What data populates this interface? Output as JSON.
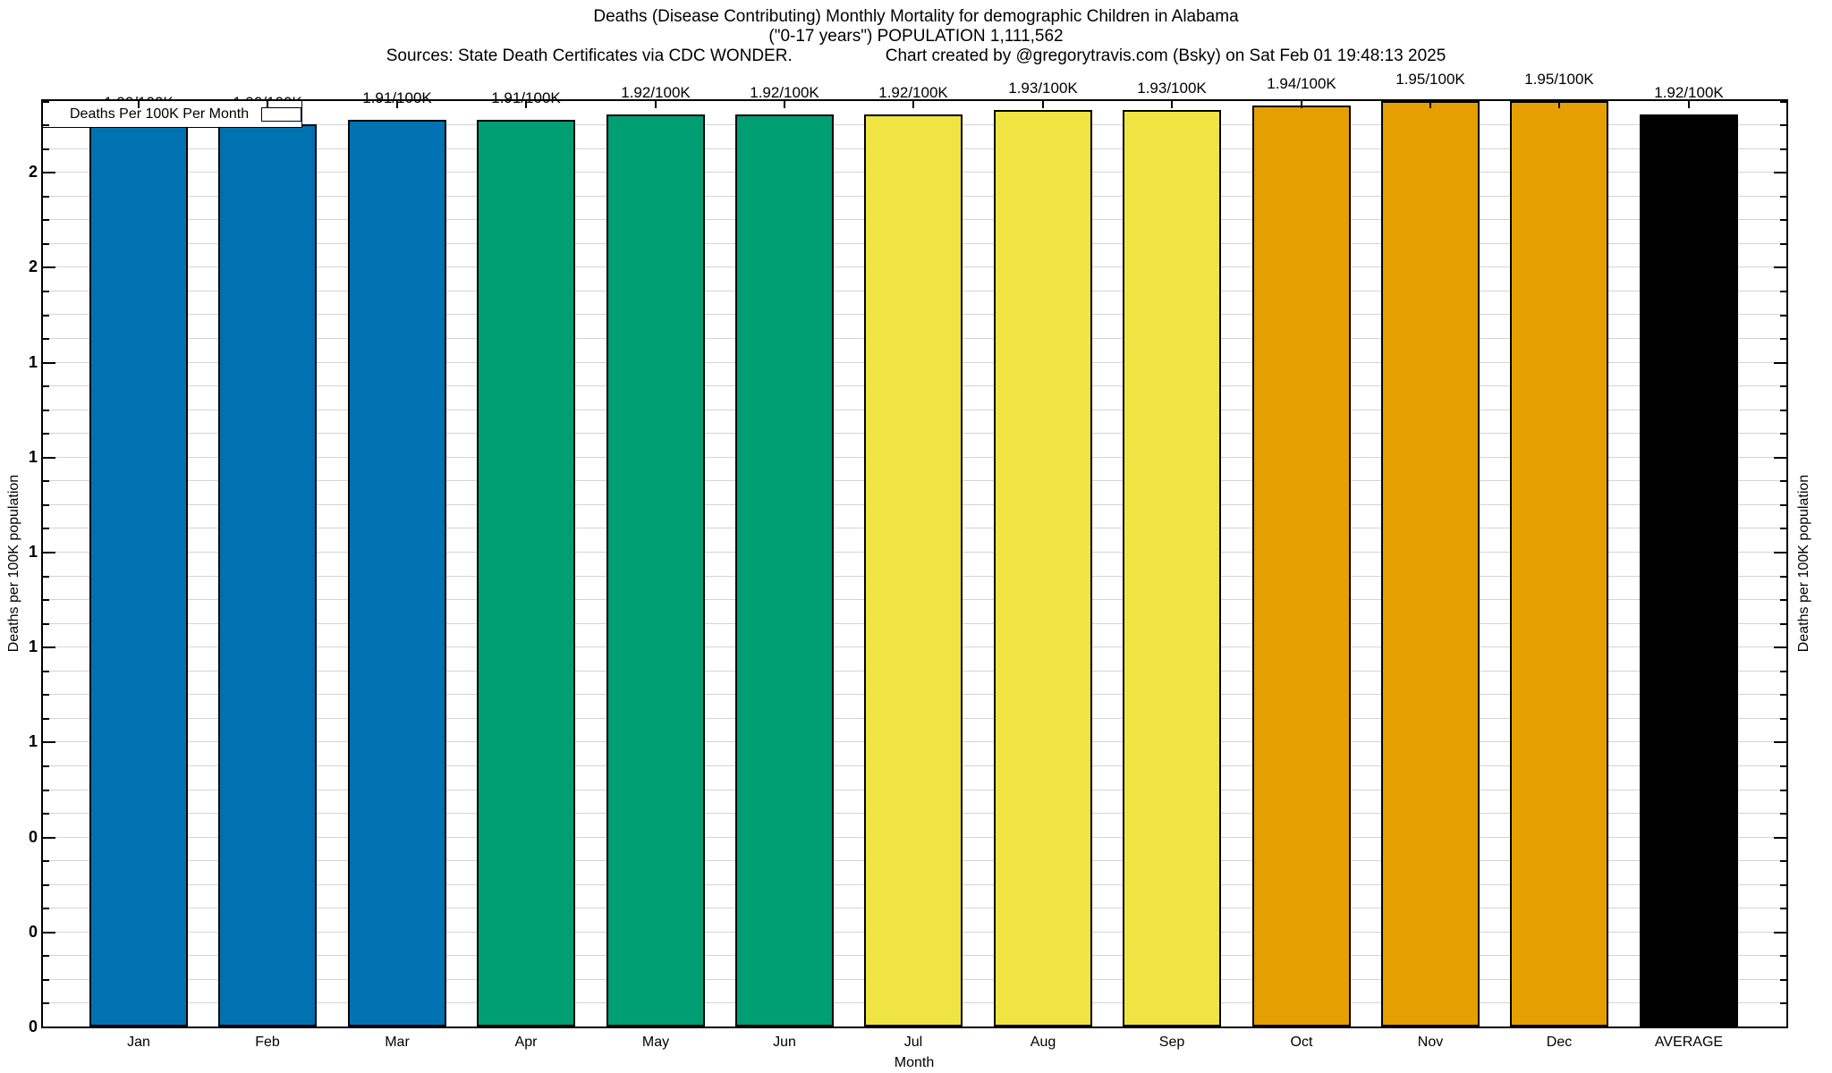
{
  "header": {
    "title_line1": "Deaths (Disease Contributing) Monthly Mortality for demographic Children in Alabama",
    "title_line2": "(\"0-17 years\") POPULATION 1,111,562",
    "sources_text": "Sources: State Death Certificates via CDC WONDER.",
    "credit_text": "Chart created by @gregorytravis.com (Bsky) on Sat Feb 01 19:48:13 2025"
  },
  "legend": {
    "label": "Deaths Per 100K Per Month",
    "swatch_color": "#0072B2"
  },
  "chart_data": {
    "type": "bar",
    "title": "Deaths (Disease Contributing) Monthly Mortality for demographic Children in Alabama (\"0-17 years\") POPULATION 1,111,562",
    "categories": [
      "Jan",
      "Feb",
      "Mar",
      "Apr",
      "May",
      "Jun",
      "Jul",
      "Aug",
      "Sep",
      "Oct",
      "Nov",
      "Dec",
      "AVERAGE"
    ],
    "values": [
      1.9,
      1.9,
      1.91,
      1.91,
      1.92,
      1.92,
      1.92,
      1.93,
      1.93,
      1.94,
      1.95,
      1.95,
      1.92
    ],
    "bar_labels": [
      "1.90/100K",
      "1.90/100K",
      "1.91/100K",
      "1.91/100K",
      "1.92/100K",
      "1.92/100K",
      "1.92/100K",
      "1.93/100K",
      "1.93/100K",
      "1.94/100K",
      "1.95/100K",
      "1.95/100K",
      "1.92/100K"
    ],
    "bar_colors": [
      "#0072B2",
      "#0072B2",
      "#0072B2",
      "#009E73",
      "#009E73",
      "#009E73",
      "#F0E442",
      "#F0E442",
      "#F0E442",
      "#E69F00",
      "#E69F00",
      "#E69F00",
      "#000000"
    ],
    "xlabel": "Month",
    "ylabel_left": "Deaths per 100K population",
    "ylabel_right": "Deaths per 100K population",
    "ylim": [
      0,
      1.95
    ],
    "ytick_step": 0.2,
    "minor_tick_step": 0.05,
    "ytick_labels_bottom_to_top": [
      "0",
      "0",
      "0",
      "1",
      "1",
      "1",
      "1",
      "1",
      "2",
      "2"
    ],
    "grid": true,
    "legend_position": "top-left"
  },
  "colors": {
    "grid": "#d4d4d4",
    "axis": "#000000",
    "background": "#ffffff",
    "blue": "#0072B2",
    "green": "#009E73",
    "yellow": "#F0E442",
    "orange": "#E69F00",
    "black": "#000000"
  }
}
